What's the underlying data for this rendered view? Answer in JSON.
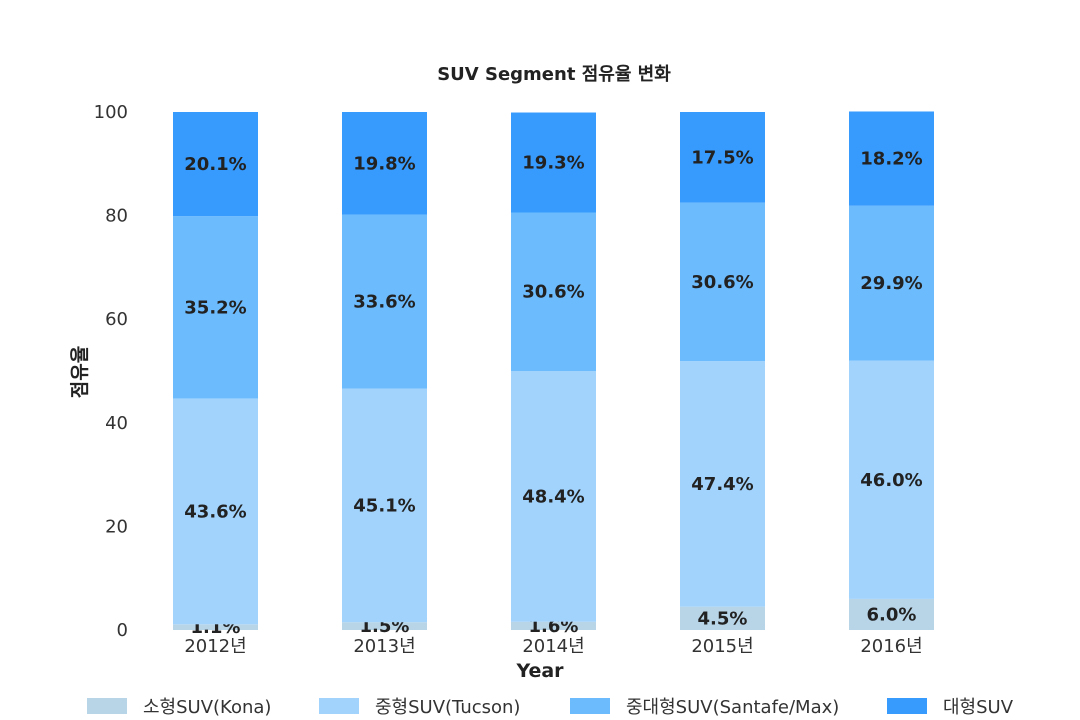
{
  "chart_data": {
    "type": "bar",
    "stacked": true,
    "title": "SUV Segment 점유율 변화",
    "xlabel": "Year",
    "ylabel": "점유율",
    "ylim": [
      0,
      100
    ],
    "yticks": [
      0,
      20,
      40,
      60,
      80,
      100
    ],
    "grid": false,
    "legend_position": "bottom",
    "categories": [
      "2012년",
      "2013년",
      "2014년",
      "2015년",
      "2016년"
    ],
    "series": [
      {
        "name": "소형SUV(Kona)",
        "color": "#b8d5e8",
        "values": [
          1.1,
          1.5,
          1.6,
          4.5,
          6.0
        ],
        "labels": [
          "1.1%",
          "1.5%",
          "1.6%",
          "4.5%",
          "6.0%"
        ]
      },
      {
        "name": "중형SUV(Tucson)",
        "color": "#a1d3fd",
        "values": [
          43.6,
          45.1,
          48.4,
          47.4,
          46.0
        ],
        "labels": [
          "43.6%",
          "45.1%",
          "48.4%",
          "47.4%",
          "46.0%"
        ]
      },
      {
        "name": "중대형SUV(Santafe/Max)",
        "color": "#6cbbfd",
        "values": [
          35.2,
          33.6,
          30.6,
          30.6,
          29.9
        ],
        "labels": [
          "35.2%",
          "33.6%",
          "30.6%",
          "30.6%",
          "29.9%"
        ]
      },
      {
        "name": "대형SUV",
        "color": "#379bfd",
        "values": [
          20.1,
          19.8,
          19.3,
          17.5,
          18.2
        ],
        "labels": [
          "20.1%",
          "19.8%",
          "19.3%",
          "17.5%",
          "18.2%"
        ]
      }
    ]
  }
}
